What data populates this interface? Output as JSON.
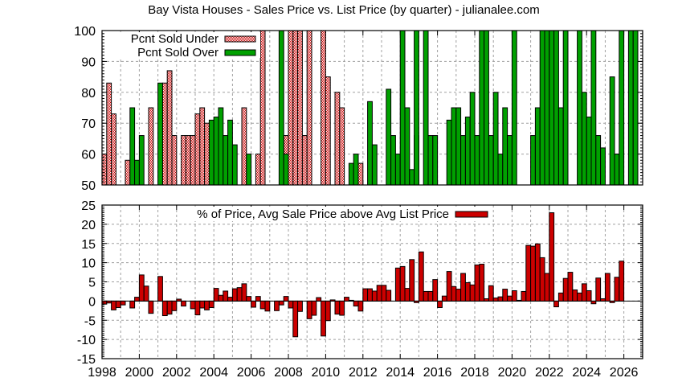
{
  "title": "Bay Vista Houses - Sales Price vs. List Price (by quarter) - julianalee.com",
  "colors": {
    "under_fill": "#f4c4c4",
    "under_pattern": "#cc0000",
    "over": "#00a000",
    "diff": "#cc0000",
    "grid": "#a0a0a0",
    "axis": "#000000"
  },
  "chart_data": [
    {
      "type": "bar",
      "title": "Bay Vista Houses - Sales Price vs. List Price (by quarter) - julianalee.com",
      "xlabel": "",
      "ylabel": "",
      "ylim": [
        50,
        100
      ],
      "yticks": [
        50,
        60,
        70,
        80,
        90,
        100
      ],
      "xlim": [
        1998,
        2027
      ],
      "grid": true,
      "legend_position": "top-left",
      "legend": [
        "Pcnt Sold Under",
        "Pcnt Sold Over"
      ],
      "x_start": 1998.0,
      "x_step": 0.25,
      "series": [
        {
          "name": "Pcnt Sold Under",
          "style": "checkered",
          "values": [
            60,
            83,
            73,
            null,
            null,
            58,
            null,
            null,
            null,
            null,
            75,
            null,
            null,
            83,
            87,
            66,
            null,
            66,
            66,
            66,
            73,
            75,
            70,
            null,
            null,
            null,
            null,
            null,
            null,
            null,
            75,
            null,
            null,
            60,
            100,
            null,
            null,
            null,
            null,
            66,
            100,
            100,
            100,
            66,
            100,
            null,
            null,
            100,
            85,
            null,
            80,
            75,
            null,
            null,
            null,
            57,
            null,
            null,
            null,
            null,
            null,
            null,
            null,
            null,
            null,
            null,
            null,
            66,
            null,
            null,
            null,
            null,
            null,
            null,
            null,
            null,
            null,
            null,
            null,
            null,
            null,
            null,
            null,
            null,
            null,
            null,
            null,
            null,
            null,
            null,
            null,
            null,
            null,
            null,
            null,
            null,
            null,
            null,
            null,
            null,
            null,
            null,
            null,
            null,
            null,
            null,
            null,
            null,
            null,
            null,
            60,
            null,
            null,
            null,
            66,
            null,
            null
          ]
        },
        {
          "name": "Pcnt Sold Over",
          "style": "solid",
          "values": [
            null,
            null,
            null,
            null,
            null,
            null,
            75,
            58,
            66,
            null,
            null,
            null,
            83,
            null,
            null,
            null,
            null,
            null,
            null,
            null,
            null,
            null,
            null,
            71,
            72,
            75,
            66,
            71,
            63,
            null,
            null,
            60,
            null,
            null,
            null,
            null,
            null,
            null,
            100,
            60,
            null,
            null,
            null,
            null,
            null,
            null,
            null,
            null,
            null,
            null,
            null,
            null,
            null,
            57,
            60,
            null,
            null,
            77,
            63,
            null,
            null,
            81,
            66,
            60,
            100,
            75,
            55,
            100,
            null,
            100,
            66,
            66,
            null,
            null,
            71,
            75,
            75,
            66,
            72,
            80,
            66,
            100,
            100,
            66,
            80,
            60,
            75,
            66,
            100,
            null,
            null,
            null,
            66,
            75,
            100,
            100,
            100,
            100,
            75,
            100,
            null,
            null,
            100,
            80,
            72,
            100,
            66,
            62,
            null,
            85,
            60,
            100,
            null,
            100,
            100,
            null,
            null
          ]
        }
      ]
    },
    {
      "type": "bar",
      "title": "",
      "xlabel": "",
      "ylabel": "",
      "ylim": [
        -15,
        25
      ],
      "yticks": [
        -15,
        -10,
        -5,
        0,
        5,
        10,
        15,
        20,
        25
      ],
      "xticks": [
        1998,
        2000,
        2002,
        2004,
        2006,
        2008,
        2010,
        2012,
        2014,
        2016,
        2018,
        2020,
        2022,
        2024,
        2026
      ],
      "xlim": [
        1998,
        2027
      ],
      "grid": true,
      "legend_position": "top-center",
      "legend": [
        "% of Price, Avg Sale Price above Avg List Price"
      ],
      "x_start": 1998.0,
      "x_step": 0.25,
      "series": [
        {
          "name": "% of Price, Avg Sale Price above Avg List Price",
          "values": [
            -0.8,
            -0.5,
            -2.3,
            -1.7,
            -1.0,
            null,
            -1.8,
            1.0,
            6.8,
            3.9,
            -3.2,
            null,
            6.4,
            -3.8,
            -3.4,
            -2.5,
            0.5,
            -1.3,
            null,
            -2.0,
            -3.6,
            -1.8,
            -2.3,
            -1.7,
            3.3,
            1.5,
            2.6,
            1.0,
            3.2,
            3.5,
            4.5,
            1.2,
            -1.6,
            1.2,
            -2.0,
            -2.6,
            null,
            -2.5,
            -1.0,
            1.2,
            -1.8,
            -9.3,
            -2.7,
            null,
            -4.6,
            -3.7,
            0.9,
            -9.1,
            -5.1,
            0.3,
            -3.4,
            -3.7,
            1.0,
            0.2,
            -1.3,
            -2.6,
            3.2,
            3.2,
            2.6,
            4.1,
            4.1,
            2.8,
            null,
            8.6,
            9.0,
            3.3,
            10.8,
            -0.4,
            12.8,
            2.5,
            2.5,
            5.6,
            -1.7,
            1.3,
            7.7,
            3.8,
            3.1,
            7.2,
            4.8,
            4.2,
            9.4,
            9.6,
            0.6,
            4.0,
            0.8,
            1.1,
            3.1,
            1.3,
            2.7,
            0.2,
            2.5,
            14.5,
            14.3,
            14.9,
            11.3,
            7.2,
            23.0,
            -1.5,
            2.1,
            5.9,
            7.5,
            2.9,
            2.1,
            4.5,
            2.7,
            -0.7,
            6.0,
            0.6,
            7.2,
            -0.4,
            6.2,
            10.4
          ]
        }
      ]
    }
  ]
}
